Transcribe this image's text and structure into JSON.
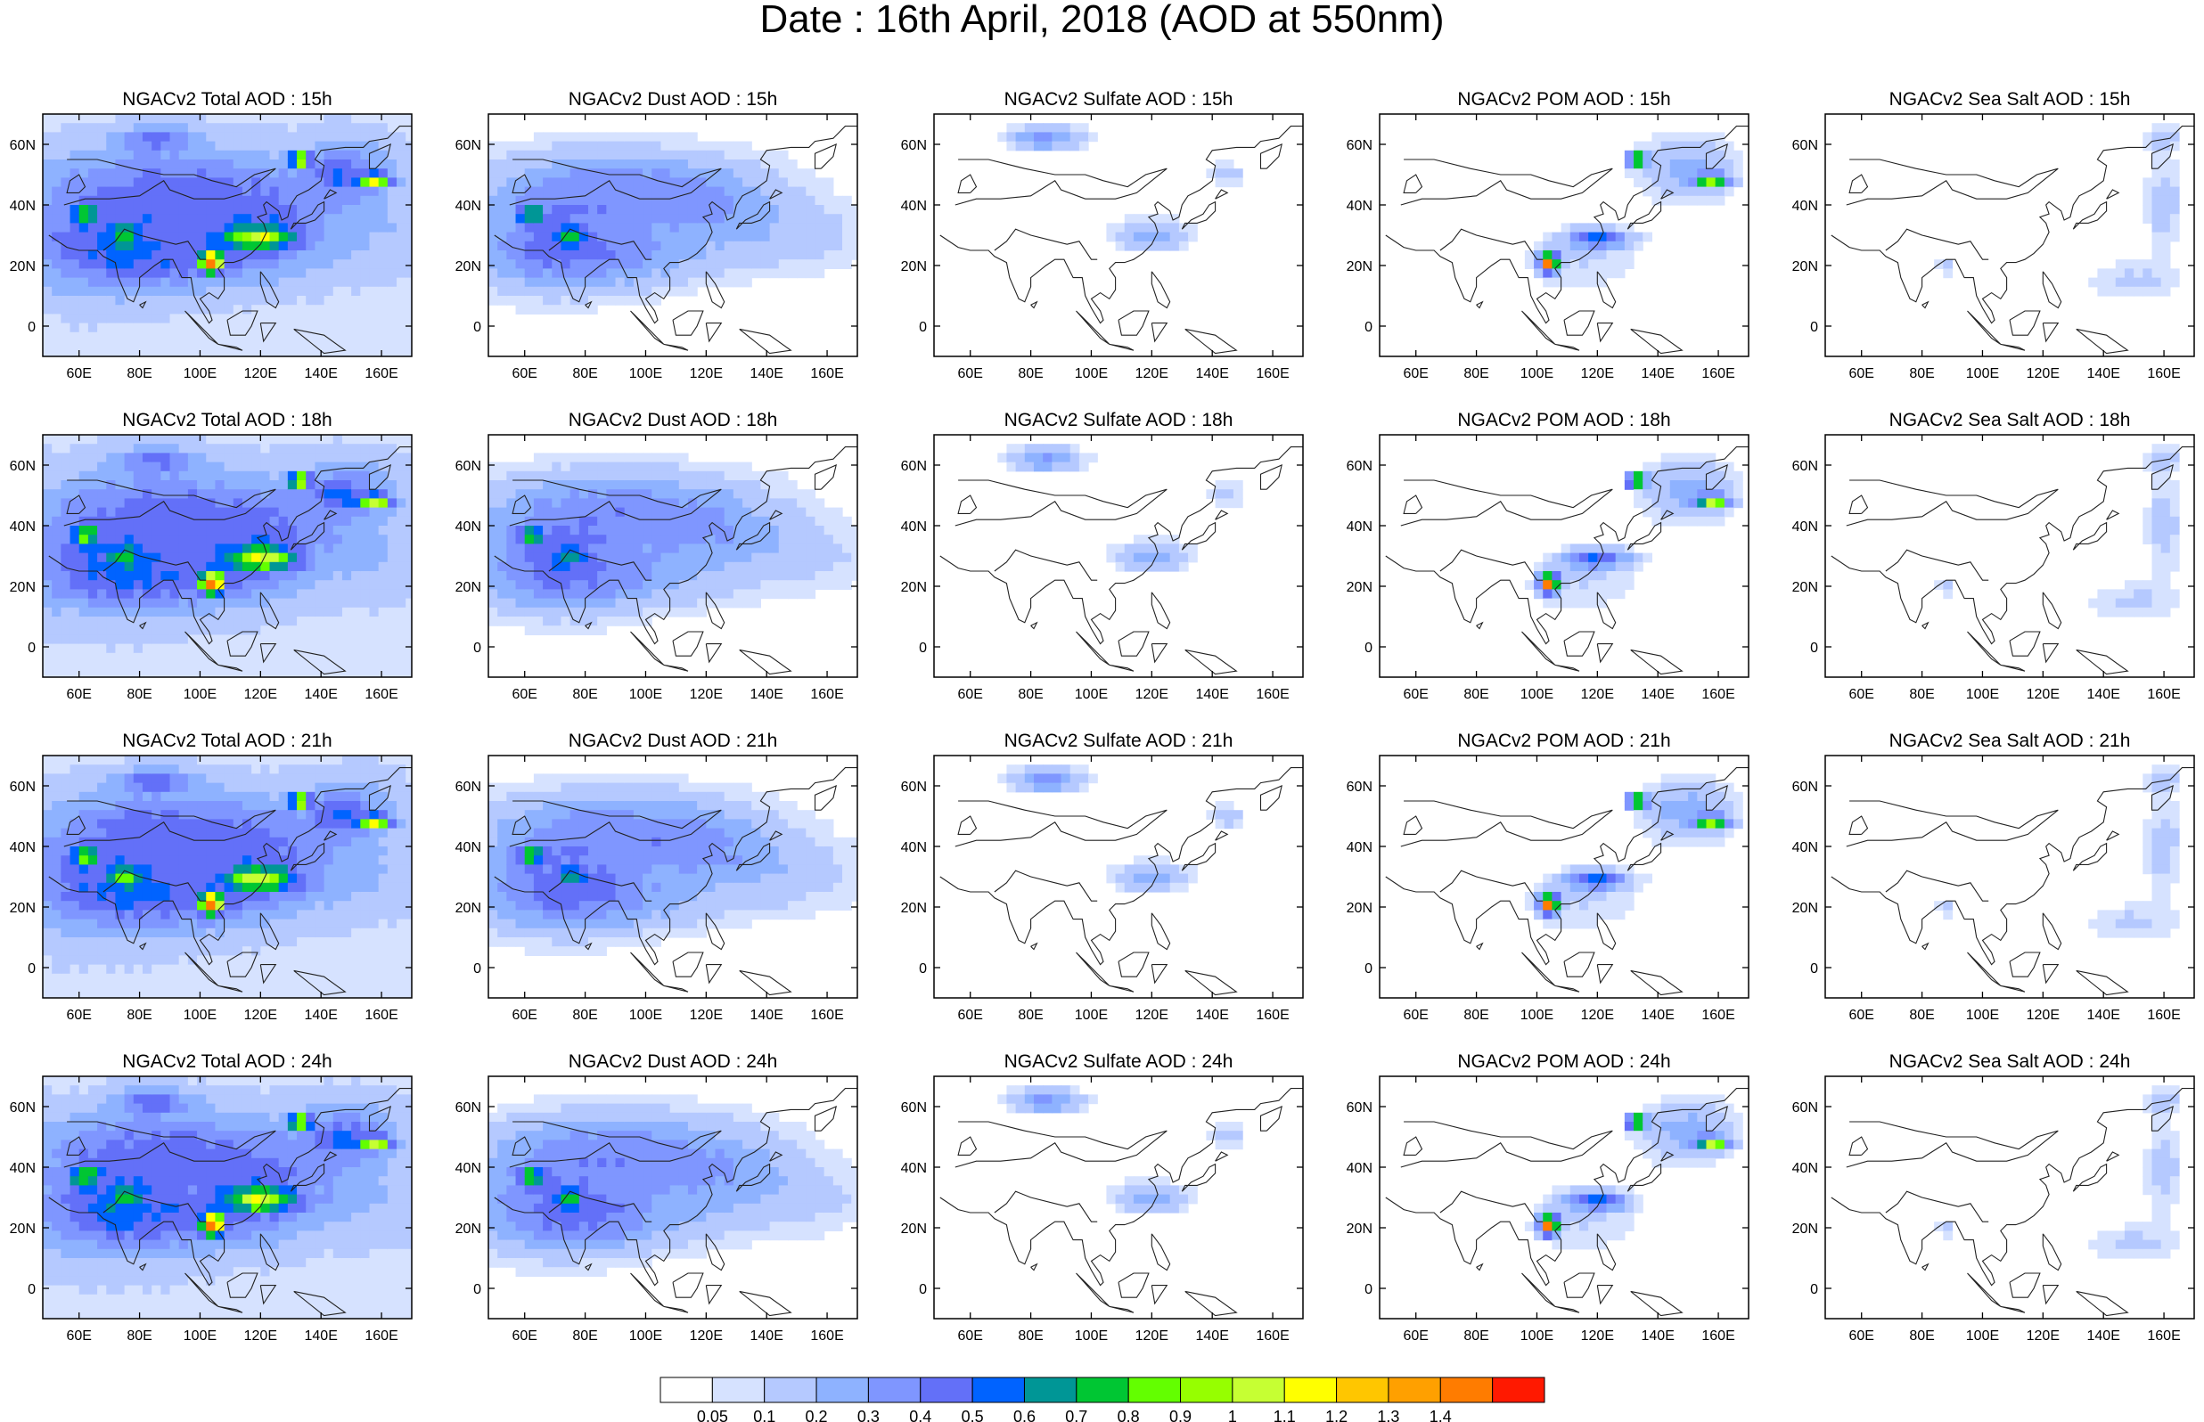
{
  "title": "Date : 16th April, 2018 (AOD at 550nm)",
  "chart_data": {
    "type": "heatmap",
    "map_projection": "cylindrical equidistant",
    "lon_range": [
      48,
      170
    ],
    "lat_range": [
      -10,
      70
    ],
    "lon_ticks": [
      "60E",
      "80E",
      "100E",
      "120E",
      "140E",
      "160E"
    ],
    "lon_tick_values": [
      60,
      80,
      100,
      120,
      140,
      160
    ],
    "lat_ticks": [
      "60N",
      "40N",
      "20N",
      "0"
    ],
    "lat_tick_values": [
      60,
      40,
      20,
      0
    ],
    "colorbar": {
      "labels": [
        "0.05",
        "0.1",
        "0.2",
        "0.3",
        "0.4",
        "0.5",
        "0.6",
        "0.7",
        "0.8",
        "0.9",
        "1",
        "1.1",
        "1.2",
        "1.3",
        "1.4"
      ],
      "levels": [
        0.05,
        0.1,
        0.2,
        0.3,
        0.4,
        0.5,
        0.6,
        0.7,
        0.8,
        0.9,
        1,
        1.1,
        1.2,
        1.3,
        1.4
      ],
      "colors": [
        "#ffffff",
        "#d6e2ff",
        "#b5c9ff",
        "#8eb2ff",
        "#7f96ff",
        "#6370f8",
        "#0063ff",
        "#009696",
        "#00c633",
        "#63ff00",
        "#96ff00",
        "#c6ff33",
        "#ffff00",
        "#ffc600",
        "#ffa000",
        "#ff7c00",
        "#ff1900"
      ]
    },
    "panels": [
      {
        "row": 0,
        "col": 0,
        "species": "total",
        "title": "NGACv2 Total AOD : 15h"
      },
      {
        "row": 0,
        "col": 1,
        "species": "dust",
        "title": "NGACv2 Dust AOD : 15h"
      },
      {
        "row": 0,
        "col": 2,
        "species": "sulfate",
        "title": "NGACv2 Sulfate AOD : 15h"
      },
      {
        "row": 0,
        "col": 3,
        "species": "pom",
        "title": "NGACv2 POM AOD : 15h"
      },
      {
        "row": 0,
        "col": 4,
        "species": "seasalt",
        "title": "NGACv2 Sea Salt AOD : 15h"
      },
      {
        "row": 1,
        "col": 0,
        "species": "total",
        "title": "NGACv2 Total AOD : 18h"
      },
      {
        "row": 1,
        "col": 1,
        "species": "dust",
        "title": "NGACv2 Dust AOD : 18h"
      },
      {
        "row": 1,
        "col": 2,
        "species": "sulfate",
        "title": "NGACv2 Sulfate AOD : 18h"
      },
      {
        "row": 1,
        "col": 3,
        "species": "pom",
        "title": "NGACv2 POM AOD : 18h"
      },
      {
        "row": 1,
        "col": 4,
        "species": "seasalt",
        "title": "NGACv2 Sea Salt AOD : 18h"
      },
      {
        "row": 2,
        "col": 0,
        "species": "total",
        "title": "NGACv2 Total AOD : 21h"
      },
      {
        "row": 2,
        "col": 1,
        "species": "dust",
        "title": "NGACv2 Dust AOD : 21h"
      },
      {
        "row": 2,
        "col": 2,
        "species": "sulfate",
        "title": "NGACv2 Sulfate AOD : 21h"
      },
      {
        "row": 2,
        "col": 3,
        "species": "pom",
        "title": "NGACv2 POM AOD : 21h"
      },
      {
        "row": 2,
        "col": 4,
        "species": "seasalt",
        "title": "NGACv2 Sea Salt AOD : 21h"
      },
      {
        "row": 3,
        "col": 0,
        "species": "total",
        "title": "NGACv2 Total AOD : 24h"
      },
      {
        "row": 3,
        "col": 1,
        "species": "dust",
        "title": "NGACv2 Dust AOD : 24h"
      },
      {
        "row": 3,
        "col": 2,
        "species": "sulfate",
        "title": "NGACv2 Sulfate AOD : 24h"
      },
      {
        "row": 3,
        "col": 3,
        "species": "pom",
        "title": "NGACv2 POM AOD : 24h"
      },
      {
        "row": 3,
        "col": 4,
        "species": "seasalt",
        "title": "NGACv2 Sea Salt  AOD : 24h"
      }
    ]
  }
}
